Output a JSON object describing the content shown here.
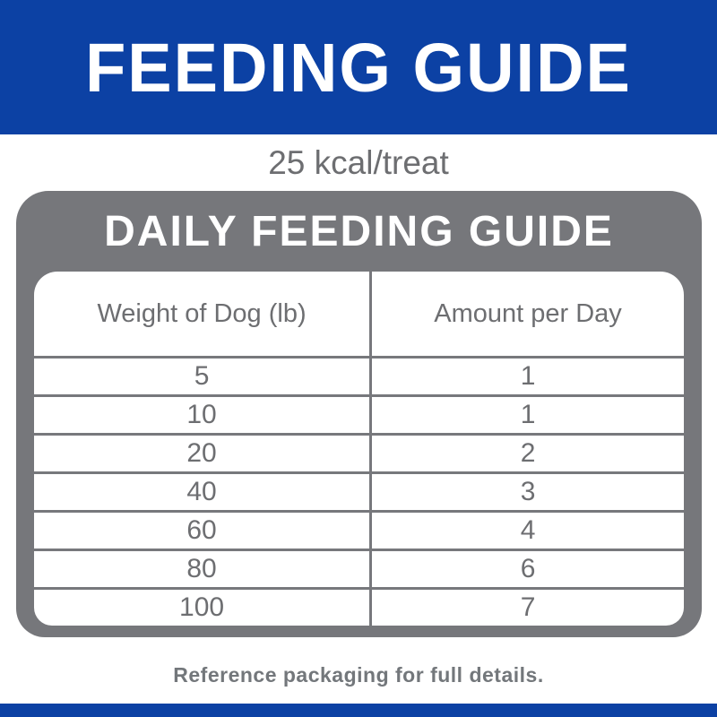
{
  "banner": {
    "title": "FEEDING GUIDE"
  },
  "subtitle": "25 kcal/treat",
  "feeding_table": {
    "title": "DAILY FEEDING GUIDE",
    "columns": [
      "Weight of Dog (lb)",
      "Amount per Day"
    ],
    "rows": [
      {
        "weight": "5",
        "amount": "1"
      },
      {
        "weight": "10",
        "amount": "1"
      },
      {
        "weight": "20",
        "amount": "2"
      },
      {
        "weight": "40",
        "amount": "3"
      },
      {
        "weight": "60",
        "amount": "4"
      },
      {
        "weight": "80",
        "amount": "6"
      },
      {
        "weight": "100",
        "amount": "7"
      }
    ]
  },
  "footer": {
    "note": "Reference packaging for full details."
  },
  "colors": {
    "brand_blue": "#0c41a4",
    "card_gray": "#76777b",
    "grid_line_gray": "#77787c",
    "text_gray": "#6d6e71",
    "note_gray": "#73777b"
  }
}
